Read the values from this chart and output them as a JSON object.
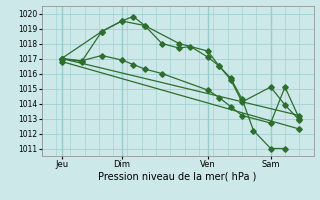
{
  "background_color": "#cce8e8",
  "grid_color": "#99cccc",
  "line_color": "#2d6e2d",
  "title": "Pression niveau de la mer( hPa )",
  "xlim": [
    0,
    9.5
  ],
  "ylim": [
    1010.5,
    1020.5
  ],
  "yticks": [
    1011,
    1012,
    1013,
    1014,
    1015,
    1016,
    1017,
    1018,
    1019,
    1020
  ],
  "xtick_positions": [
    0.7,
    2.8,
    5.8,
    8.0
  ],
  "xtick_labels": [
    "Jeu",
    "Dim",
    "Ven",
    "Sam"
  ],
  "vlines": [
    0.7,
    2.8,
    5.8,
    8.0
  ],
  "line_main": {
    "x": [
      0.7,
      1.4,
      2.1,
      2.8,
      3.2,
      3.6,
      4.2,
      4.8,
      5.2,
      5.8,
      6.2,
      6.6,
      7.0,
      7.4,
      8.0,
      8.5
    ],
    "y": [
      1017.0,
      1016.8,
      1018.8,
      1019.5,
      1019.8,
      1019.2,
      1018.0,
      1017.7,
      1017.8,
      1017.1,
      1016.5,
      1015.7,
      1014.3,
      1012.2,
      1011.0,
      1011.0
    ]
  },
  "line_second": {
    "x": [
      0.7,
      1.4,
      2.1,
      2.8,
      3.2,
      3.6,
      4.2,
      5.8,
      6.2,
      6.6,
      7.0,
      8.0,
      8.5,
      9.0
    ],
    "y": [
      1017.0,
      1016.85,
      1017.2,
      1016.9,
      1016.6,
      1016.3,
      1016.0,
      1014.9,
      1014.4,
      1013.8,
      1013.2,
      1012.7,
      1015.1,
      1013.0
    ]
  },
  "line_trend1": {
    "x": [
      0.7,
      9.0
    ],
    "y": [
      1017.0,
      1013.2
    ]
  },
  "line_trend2": {
    "x": [
      0.7,
      9.0
    ],
    "y": [
      1016.8,
      1012.3
    ]
  },
  "line_detail": {
    "x": [
      0.7,
      2.1,
      2.8,
      3.6,
      4.8,
      5.8,
      6.2,
      6.6,
      7.0,
      8.0,
      8.5,
      9.0
    ],
    "y": [
      1017.0,
      1018.8,
      1019.5,
      1019.2,
      1018.0,
      1017.5,
      1016.5,
      1015.6,
      1014.1,
      1015.1,
      1013.9,
      1012.9
    ]
  }
}
